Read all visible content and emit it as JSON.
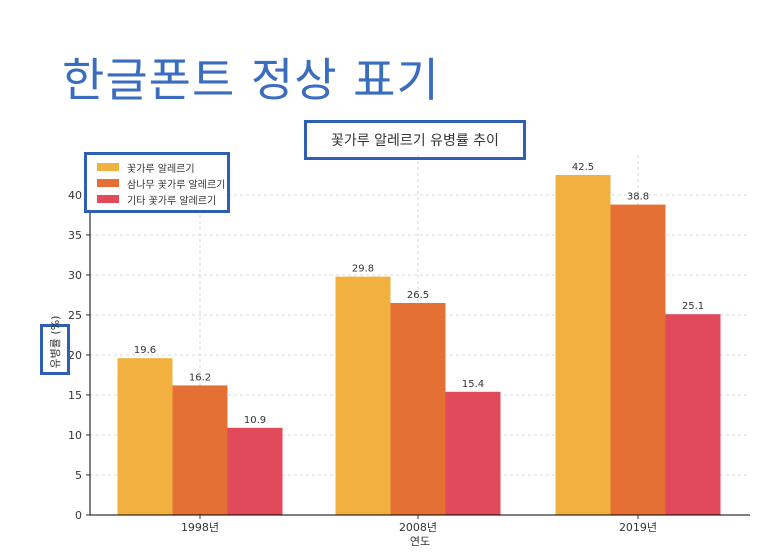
{
  "slide_title": "한글폰트 정상 표기",
  "colors": {
    "title": "#3a6cc0",
    "annotation_box": "#2e5fb3",
    "series": [
      "#f2b13e",
      "#e57034",
      "#e04a5a"
    ]
  },
  "chart_data": {
    "type": "bar",
    "title": "꽃가루 알레르기 유병률 추이",
    "xlabel": "연도",
    "ylabel": "유병률 (%)",
    "categories": [
      "1998년",
      "2008년",
      "2019년"
    ],
    "ylim": [
      0,
      45
    ],
    "yticks": [
      0,
      5,
      10,
      15,
      20,
      25,
      30,
      35,
      40
    ],
    "grid": true,
    "legend_position": "top-left",
    "series": [
      {
        "name": "꽃가루 알레르기",
        "values": [
          19.6,
          29.8,
          42.5
        ]
      },
      {
        "name": "삼나무 꽃가루 알레르기",
        "values": [
          16.2,
          26.5,
          38.8
        ]
      },
      {
        "name": "기타 꽃가루 알레르기",
        "values": [
          10.9,
          15.4,
          25.1
        ]
      }
    ]
  }
}
